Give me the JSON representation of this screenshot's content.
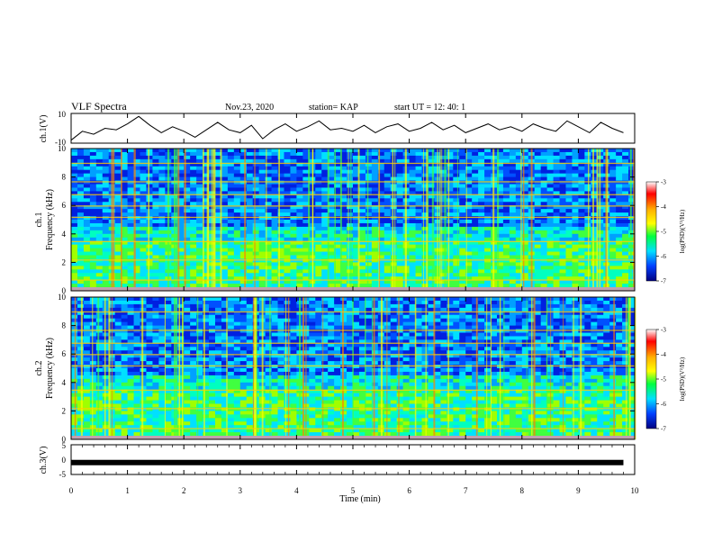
{
  "header": {
    "title": "VLF Spectra",
    "date": "Nov.23, 2020",
    "station": "station= KAP",
    "start": "start  UT =   12: 40: 1"
  },
  "chart_data": [
    {
      "type": "line",
      "name": "ch1-waveform",
      "ylabel": "ch.1(V)",
      "ylim": [
        -10,
        10
      ],
      "y_ticks": [
        "10",
        "-10"
      ],
      "xlim": [
        0,
        10
      ],
      "x": [
        0,
        0.2,
        0.4,
        0.6,
        0.8,
        1.0,
        1.2,
        1.4,
        1.6,
        1.8,
        2.0,
        2.2,
        2.4,
        2.6,
        2.8,
        3.0,
        3.2,
        3.4,
        3.6,
        3.8,
        4.0,
        4.2,
        4.4,
        4.6,
        4.8,
        5.0,
        5.2,
        5.4,
        5.6,
        5.8,
        6.0,
        6.2,
        6.4,
        6.6,
        6.8,
        7.0,
        7.2,
        7.4,
        7.6,
        7.8,
        8.0,
        8.2,
        8.4,
        8.6,
        8.8,
        9.0,
        9.2,
        9.4,
        9.6,
        9.8
      ],
      "y": [
        -8,
        -2,
        -4,
        0,
        -1,
        3,
        8,
        2,
        -3,
        1,
        -2,
        -6,
        -1,
        4,
        -1,
        -3,
        2,
        -7,
        -1,
        3,
        -2,
        1,
        5,
        -1,
        0,
        -2,
        2,
        -3,
        1,
        3,
        -2,
        0,
        4,
        -1,
        2,
        -3,
        0,
        3,
        -1,
        1,
        -2,
        3,
        0,
        -2,
        5,
        1,
        -3,
        4,
        0,
        -3
      ]
    },
    {
      "type": "heatmap",
      "name": "ch1-spectrogram",
      "ylabel": "ch.1 Frequency  (kHz)",
      "ylim": [
        0,
        10
      ],
      "y_ticks": [
        "0",
        "2",
        "4",
        "6",
        "8",
        "10"
      ],
      "xlim": [
        0,
        10
      ],
      "colorbar": {
        "label": "log(PSD)(V²/Hz)",
        "range": [
          -7,
          -3
        ],
        "ticks": [
          "-3",
          "-4",
          "-5",
          "-6",
          "-7"
        ]
      }
    },
    {
      "type": "heatmap",
      "name": "ch2-spectrogram",
      "ylabel": "ch.2 Frequency  (kHz)",
      "ylim": [
        0,
        10
      ],
      "y_ticks": [
        "0",
        "2",
        "4",
        "6",
        "8",
        "10"
      ],
      "xlim": [
        0,
        10
      ],
      "colorbar": {
        "label": "log(PSD)(V²/Hz)",
        "range": [
          -7,
          -3
        ],
        "ticks": [
          "-3",
          "-4",
          "-5",
          "-6",
          "-7"
        ]
      }
    },
    {
      "type": "line",
      "name": "ch3-waveform",
      "ylabel": "ch.3(V)",
      "ylim": [
        -5,
        5
      ],
      "y_ticks": [
        "5",
        "0",
        "-5"
      ],
      "xlim": [
        0,
        10
      ],
      "x": [
        0,
        9.8
      ],
      "y": [
        -1,
        -1
      ]
    }
  ],
  "xaxis": {
    "label": "Time  (min)",
    "ticks": [
      "0",
      "1",
      "2",
      "3",
      "4",
      "5",
      "6",
      "7",
      "8",
      "9",
      "10"
    ]
  }
}
